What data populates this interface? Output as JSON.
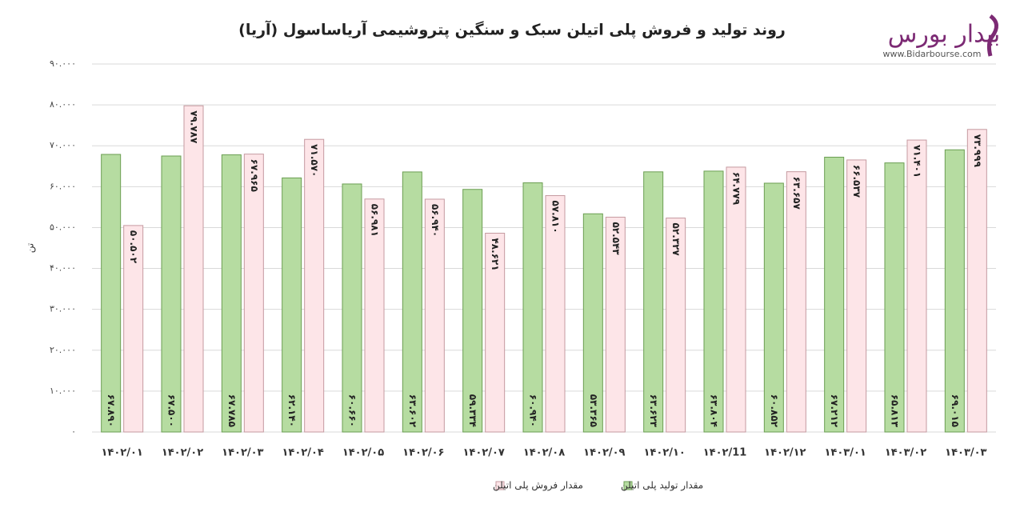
{
  "logo": {
    "name": "بیدار بورس",
    "url": "www.Bidarbourse.com"
  },
  "chart_data": {
    "type": "bar",
    "title": "روند تولید و فروش پلی اتیلن سبک و سنگین پتروشیمی  آریاساسول (آریا)",
    "y_label": "تن",
    "categories": [
      "۱۴۰۲/۰۱",
      "۱۴۰۲/۰۲",
      "۱۴۰۲/۰۳",
      "۱۴۰۲/۰۴",
      "۱۴۰۲/۰۵",
      "۱۴۰۲/۰۶",
      "۱۴۰۲/۰۷",
      "۱۴۰۲/۰۸",
      "۱۴۰۲/۰۹",
      "۱۴۰۲/۱۰",
      "۱۴۰۲/11",
      "۱۴۰۲/۱۲",
      "۱۴۰۳/۰۱",
      "۱۴۰۳/۰۲",
      "۱۴۰۳/۰۳"
    ],
    "series": [
      {
        "name": "مقدار تولید پلی اتیلن",
        "color": "#b6dca1",
        "edge_color": "#6b9e52",
        "values": [
          67890,
          67500,
          67785,
          62140,
          60660,
          63602,
          59334,
          60940,
          53365,
          63623,
          63804,
          60852,
          67212,
          65813,
          69015
        ],
        "value_labels": [
          "۶۷.۸۹۰",
          "۶۷.۵۰۰",
          "۶۷.۷۸۵",
          "۶۲.۱۴۰",
          "۶۰.۶۶۰",
          "۶۳.۶۰۲",
          "۵۹.۳۳۴",
          "۶۰.۹۴۰",
          "۵۳.۳۶۵",
          "۶۳.۶۲۳",
          "۶۳.۸۰۴",
          "۶۰.۸۵۲",
          "۶۷.۲۱۲",
          "۶۵.۸۱۳",
          "۶۹.۰۱۵"
        ]
      },
      {
        "name": "مقدار فروش پلی اتیلن",
        "color": "#fde5e8",
        "edge_color": "#c59aa0",
        "values": [
          50502,
          79787,
          67965,
          71570,
          56981,
          56940,
          48621,
          57810,
          52543,
          52327,
          64779,
          63657,
          66537,
          71401,
          73999
        ],
        "value_labels": [
          "۵۰.۵۰۲",
          "۷۹.۷۸۷",
          "۶۷.۹۶۵",
          "۷۱.۵۷۰",
          "۵۶.۹۸۱",
          "۵۶.۹۴۰",
          "۴۸.۶۲۱",
          "۵۷.۸۱۰",
          "۵۲.۵۴۳",
          "۵۲.۳۲۷",
          "۶۴.۷۷۹",
          "۶۳.۶۵۷",
          "۶۶.۵۳۷",
          "۷۱.۴۰۱",
          "۷۳.۹۹۹"
        ]
      }
    ],
    "ylim": [
      0,
      90000
    ],
    "yticks": [
      {
        "value": 0,
        "label": "۰"
      },
      {
        "value": 10000,
        "label": "۱۰.۰۰۰"
      },
      {
        "value": 20000,
        "label": "۲۰.۰۰۰"
      },
      {
        "value": 30000,
        "label": "۳۰.۰۰۰"
      },
      {
        "value": 40000,
        "label": "۴۰.۰۰۰"
      },
      {
        "value": 50000,
        "label": "۵۰.۰۰۰"
      },
      {
        "value": 60000,
        "label": "۶۰.۰۰۰"
      },
      {
        "value": 70000,
        "label": "۷۰.۰۰۰"
      },
      {
        "value": 80000,
        "label": "۸۰.۰۰۰"
      },
      {
        "value": 90000,
        "label": "۹۰.۰۰۰"
      }
    ],
    "grid": true,
    "legend": "bottom"
  }
}
